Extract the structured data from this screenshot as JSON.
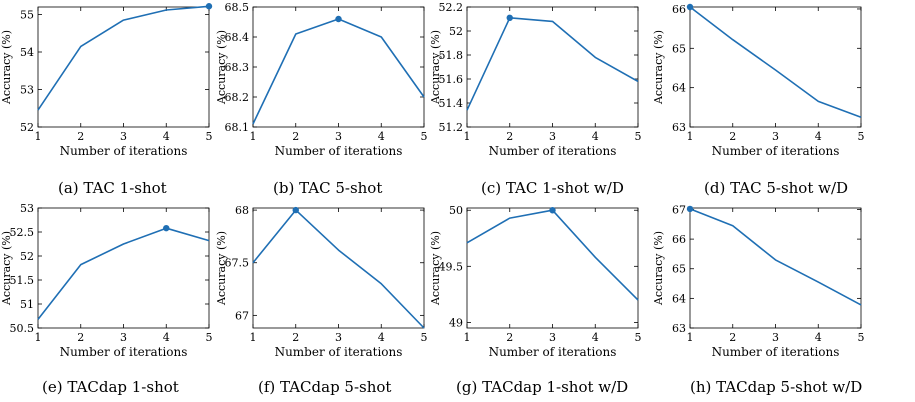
{
  "colors": {
    "line": "#1f6fb4",
    "axis": "#000000",
    "background": "#ffffff"
  },
  "chart_data": [
    {
      "type": "line",
      "xlabel": "Number of iterations",
      "ylabel": "Accuracy (%)",
      "x": [
        1,
        2,
        3,
        4,
        5
      ],
      "y": [
        52.45,
        54.15,
        54.85,
        55.12,
        55.22
      ],
      "xlim": [
        1,
        5
      ],
      "ylim": [
        52,
        55.2
      ],
      "yticks": [
        "52",
        "53",
        "54",
        "55"
      ],
      "marker_x": 5,
      "grid": false,
      "caption": "(a) TAC 1-shot"
    },
    {
      "type": "line",
      "xlabel": "Number of iterations",
      "ylabel": "Accuracy (%)",
      "x": [
        1,
        2,
        3,
        4,
        5
      ],
      "y": [
        68.11,
        68.41,
        68.46,
        68.4,
        68.2
      ],
      "xlim": [
        1,
        5
      ],
      "ylim": [
        68.1,
        68.5
      ],
      "yticks": [
        "68.1",
        "68.2",
        "68.3",
        "68.4",
        "68.5"
      ],
      "marker_x": 3,
      "grid": false,
      "caption": "(b) TAC 5-shot"
    },
    {
      "type": "line",
      "xlabel": "Number of iterations",
      "ylabel": "Accuracy (%)",
      "x": [
        1,
        2,
        3,
        4,
        5
      ],
      "y": [
        51.34,
        52.11,
        52.08,
        51.78,
        51.58
      ],
      "xlim": [
        1,
        5
      ],
      "ylim": [
        51.2,
        52.2
      ],
      "yticks": [
        "51.2",
        "51.4",
        "51.6",
        "51.8",
        "52",
        "52.2"
      ],
      "marker_x": 2,
      "grid": false,
      "caption": "(c) TAC 1-shot w/D"
    },
    {
      "type": "line",
      "xlabel": "Number of iterations",
      "ylabel": "Accuracy (%)",
      "x": [
        1,
        2,
        3,
        4,
        5
      ],
      "y": [
        66.05,
        65.22,
        64.45,
        63.65,
        63.25
      ],
      "xlim": [
        1,
        5
      ],
      "ylim": [
        63,
        66.05
      ],
      "yticks": [
        "63",
        "64",
        "65",
        "66"
      ],
      "marker_x": 1,
      "grid": false,
      "caption": "(d) TAC 5-shot w/D"
    },
    {
      "type": "line",
      "xlabel": "Number of iterations",
      "ylabel": "Accuracy (%)",
      "x": [
        1,
        2,
        3,
        4,
        5
      ],
      "y": [
        50.68,
        51.82,
        52.25,
        52.58,
        52.32
      ],
      "xlim": [
        1,
        5
      ],
      "ylim": [
        50.5,
        53
      ],
      "yticks": [
        "50.5",
        "51",
        "51.5",
        "52",
        "52.5",
        "53"
      ],
      "marker_x": 4,
      "grid": false,
      "caption": "(e) TACdap 1-shot"
    },
    {
      "type": "line",
      "xlabel": "Number of iterations",
      "ylabel": "Accuracy (%)",
      "x": [
        1,
        2,
        3,
        4,
        5
      ],
      "y": [
        67.5,
        68.0,
        67.62,
        67.3,
        66.88
      ],
      "xlim": [
        1,
        5
      ],
      "ylim": [
        66.88,
        68.02
      ],
      "yticks": [
        "67",
        "67.5",
        "68"
      ],
      "marker_x": 2,
      "grid": false,
      "caption": "(f) TACdap 5-shot"
    },
    {
      "type": "line",
      "xlabel": "Number of iterations",
      "ylabel": "Accuracy (%)",
      "x": [
        1,
        2,
        3,
        4,
        5
      ],
      "y": [
        49.71,
        49.93,
        50.0,
        49.58,
        49.2
      ],
      "xlim": [
        1,
        5
      ],
      "ylim": [
        48.95,
        50.02
      ],
      "yticks": [
        "49",
        "49.5",
        "50"
      ],
      "marker_x": 3,
      "grid": false,
      "caption": "(g) TACdap 1-shot w/D"
    },
    {
      "type": "line",
      "xlabel": "Number of iterations",
      "ylabel": "Accuracy (%)",
      "x": [
        1,
        2,
        3,
        4,
        5
      ],
      "y": [
        67.02,
        66.45,
        65.3,
        64.55,
        63.78
      ],
      "xlim": [
        1,
        5
      ],
      "ylim": [
        63,
        67.05
      ],
      "yticks": [
        "63",
        "64",
        "65",
        "66",
        "67"
      ],
      "marker_x": 1,
      "grid": false,
      "caption": "(h) TACdap 5-shot w/D"
    }
  ]
}
